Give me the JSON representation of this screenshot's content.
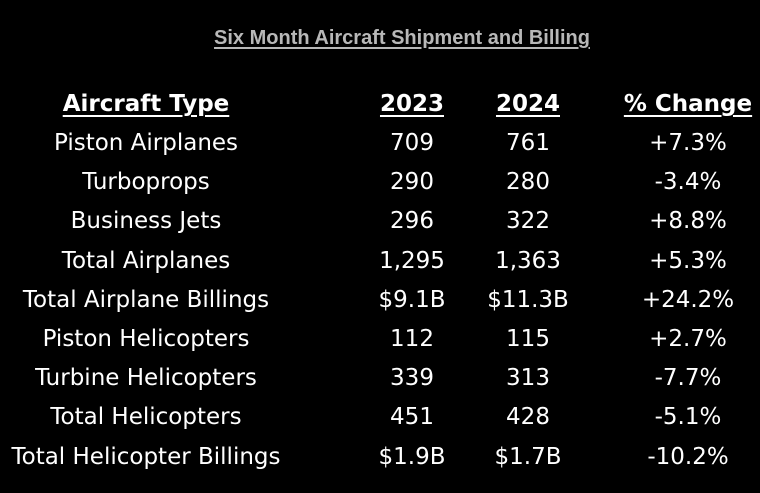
{
  "chart_data": {
    "type": "table",
    "title": "Six Month Aircraft Shipment and Billing",
    "columns": [
      "Aircraft Type",
      "2023",
      "2024",
      "% Change"
    ],
    "rows": [
      [
        "Piston Airplanes",
        "709",
        "761",
        "+7.3%"
      ],
      [
        "Turboprops",
        "290",
        "280",
        "-3.4%"
      ],
      [
        "Business Jets",
        "296",
        "322",
        "+8.8%"
      ],
      [
        "Total Airplanes",
        "1,295",
        "1,363",
        "+5.3%"
      ],
      [
        "Total Airplane Billings",
        "$9.1B",
        "$11.3B",
        "+24.2%"
      ],
      [
        "Piston Helicopters",
        "112",
        "115",
        "+2.7%"
      ],
      [
        "Turbine Helicopters",
        "339",
        "313",
        "-7.7%"
      ],
      [
        "Total Helicopters",
        "451",
        "428",
        "-5.1%"
      ],
      [
        "Total Helicopter Billings",
        "$1.9B",
        "$1.7B",
        "-10.2%"
      ]
    ]
  },
  "colors": {
    "background": "#000000",
    "title": "#b8b8b8",
    "text": "#ffffff"
  }
}
